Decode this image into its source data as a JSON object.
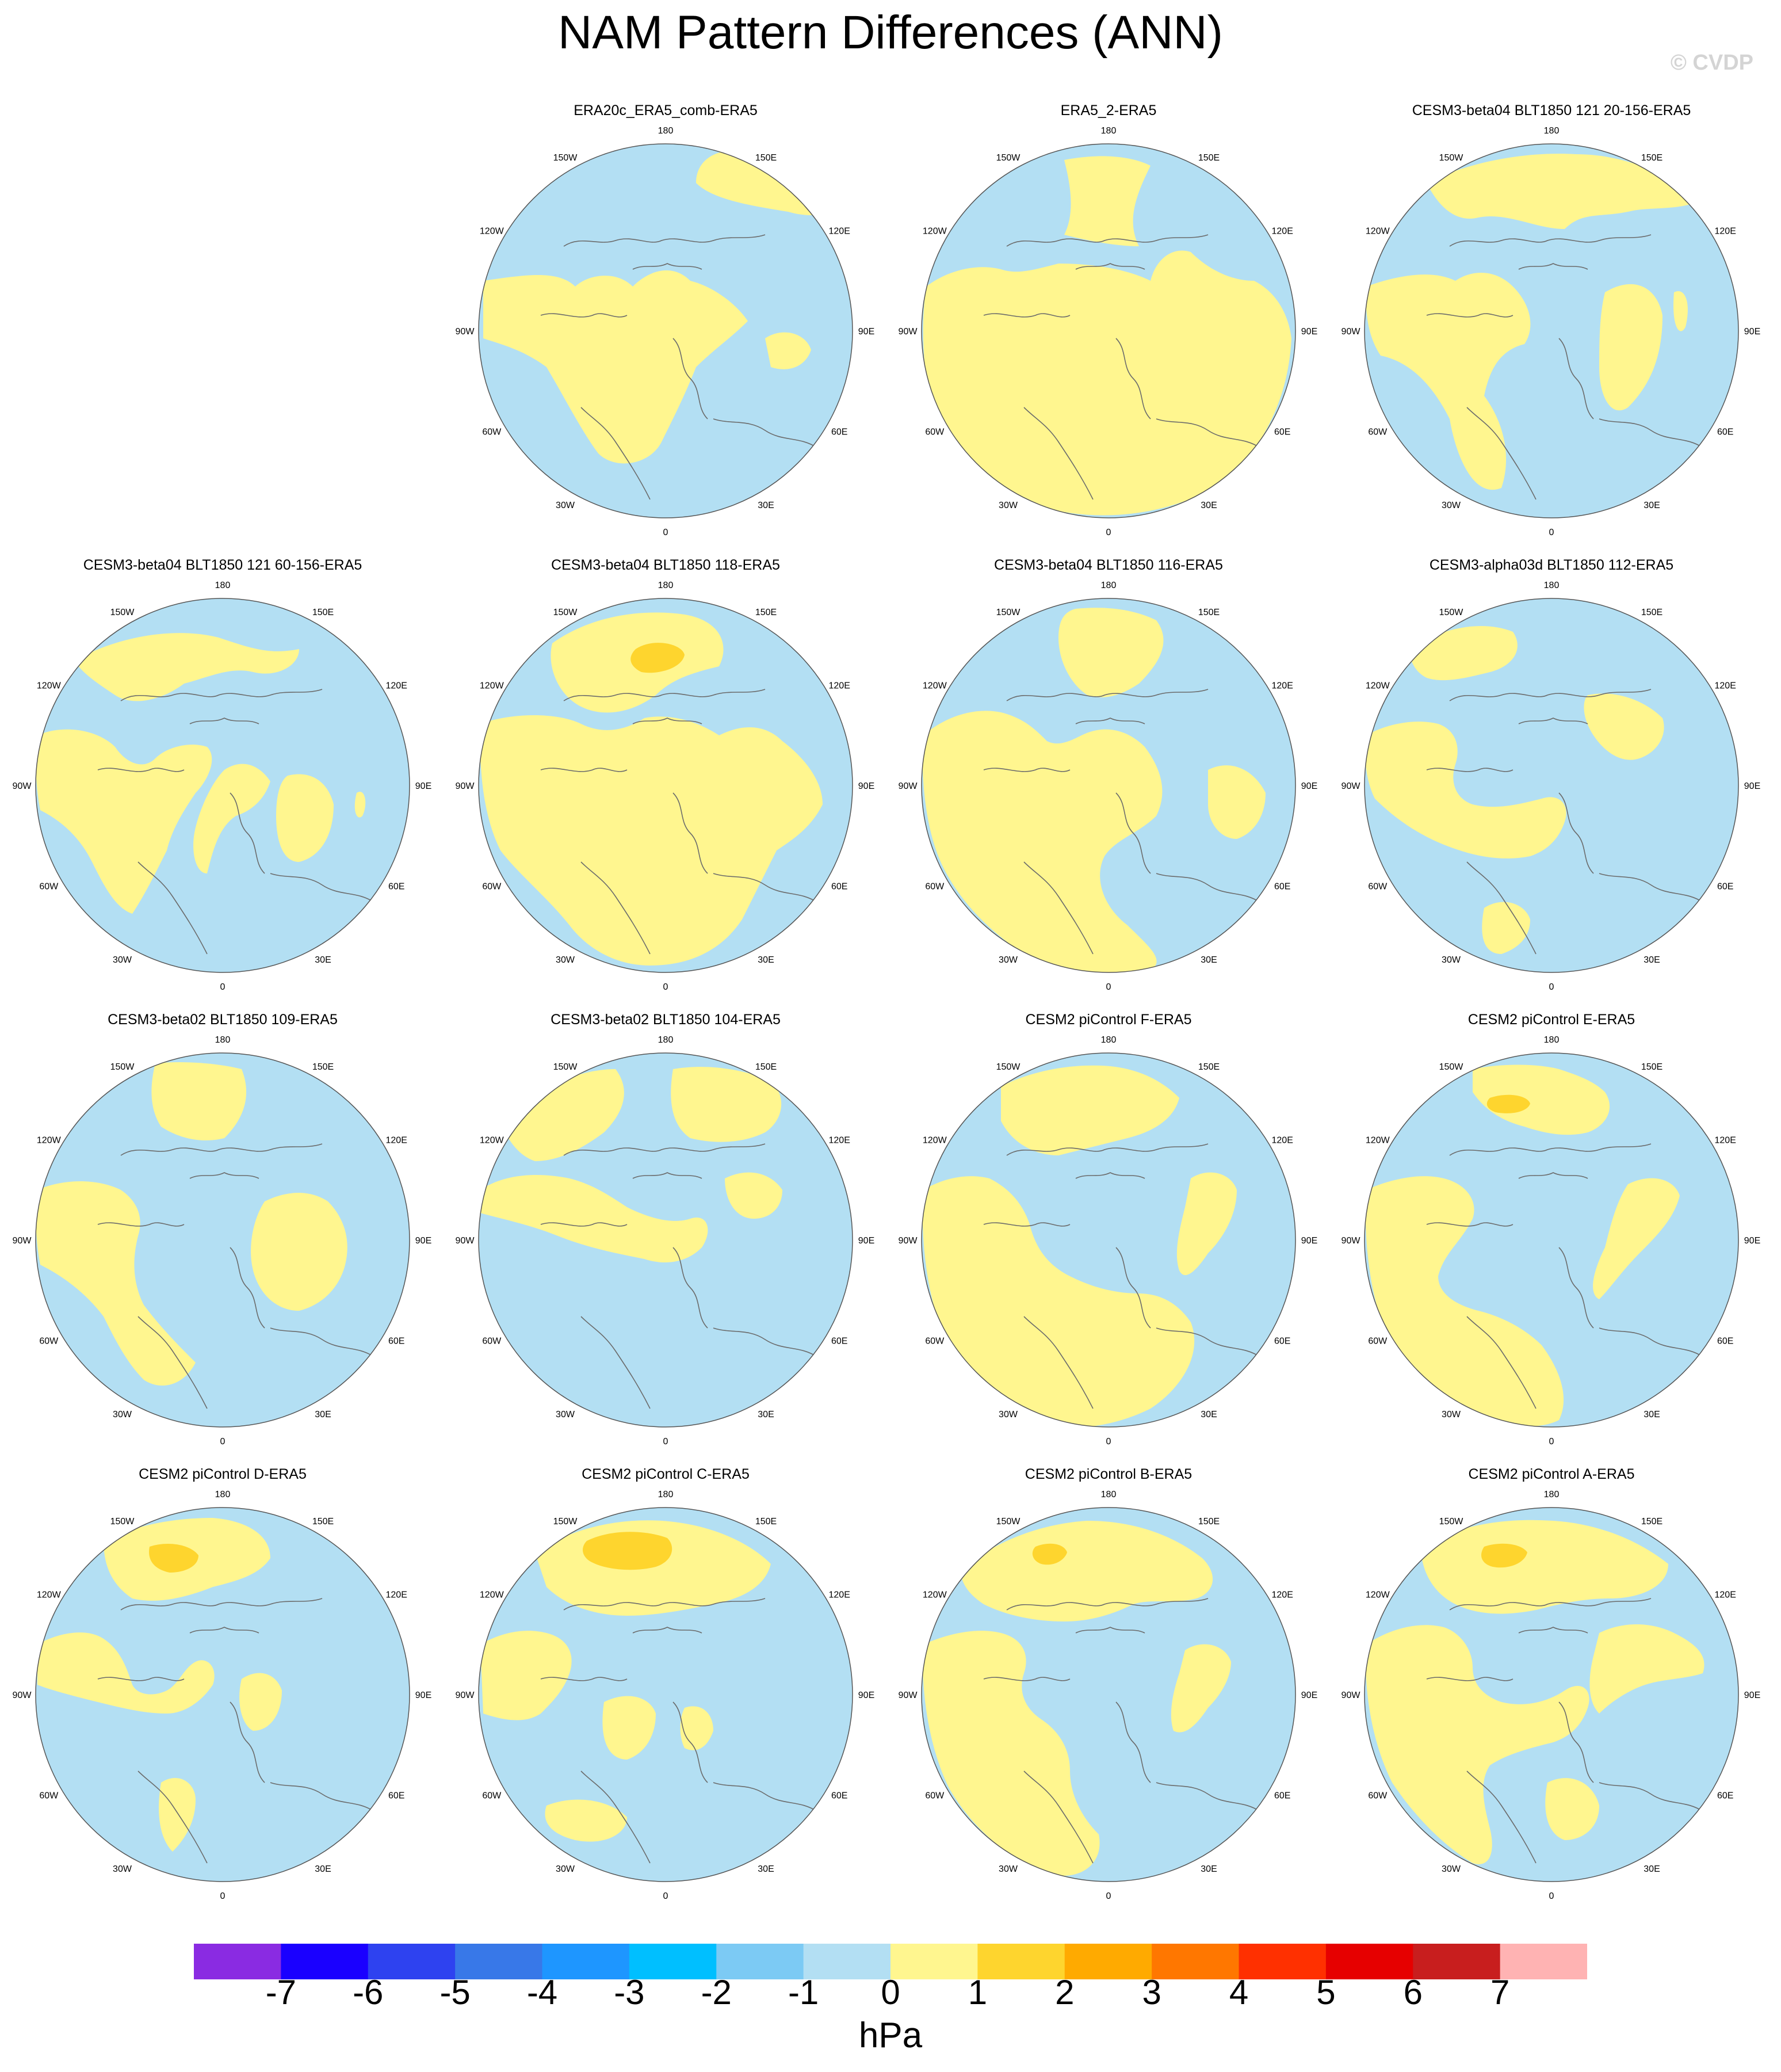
{
  "title": "NAM Pattern Differences (ANN)",
  "credit": "© CVDP",
  "units": "hPa",
  "lon_labels": [
    "180",
    "150E",
    "120E",
    "90E",
    "60E",
    "30E",
    "0",
    "30W",
    "60W",
    "90W",
    "120W",
    "150W"
  ],
  "colorbar": {
    "colors": [
      "#8a2be2",
      "#1a00ff",
      "#2e42f0",
      "#3878e8",
      "#1e96ff",
      "#00bfff",
      "#7ccaf4",
      "#b3dff3",
      "#fff68f",
      "#fed52e",
      "#ffaa00",
      "#ff7700",
      "#ff3000",
      "#e60000",
      "#c81e1e",
      "#ffb3b3"
    ],
    "labels": [
      "-7",
      "-6",
      "-5",
      "-4",
      "-3",
      "-2",
      "-1",
      "0",
      "1",
      "2",
      "3",
      "4",
      "5",
      "6",
      "7"
    ]
  },
  "panels": [
    {
      "title": "ERA20c_ERA5_comb-ERA5",
      "pattern": 0
    },
    {
      "title": "ERA5_2-ERA5",
      "pattern": 1
    },
    {
      "title": "CESM3-beta04 BLT1850 121 20-156-ERA5",
      "pattern": 2
    },
    {
      "title": "CESM3-beta04 BLT1850 121 60-156-ERA5",
      "pattern": 3
    },
    {
      "title": "CESM3-beta04 BLT1850 118-ERA5",
      "pattern": 4
    },
    {
      "title": "CESM3-beta04 BLT1850 116-ERA5",
      "pattern": 5
    },
    {
      "title": "CESM3-alpha03d BLT1850 112-ERA5",
      "pattern": 6
    },
    {
      "title": "CESM3-beta02 BLT1850 109-ERA5",
      "pattern": 7
    },
    {
      "title": "CESM3-beta02 BLT1850 104-ERA5",
      "pattern": 8
    },
    {
      "title": "CESM2 piControl F-ERA5",
      "pattern": 9
    },
    {
      "title": "CESM2 piControl E-ERA5",
      "pattern": 10
    },
    {
      "title": "CESM2 piControl D-ERA5",
      "pattern": 11
    },
    {
      "title": "CESM2 piControl C-ERA5",
      "pattern": 12
    },
    {
      "title": "CESM2 piControl B-ERA5",
      "pattern": 13
    },
    {
      "title": "CESM2 piControl A-ERA5",
      "pattern": 14
    }
  ]
}
